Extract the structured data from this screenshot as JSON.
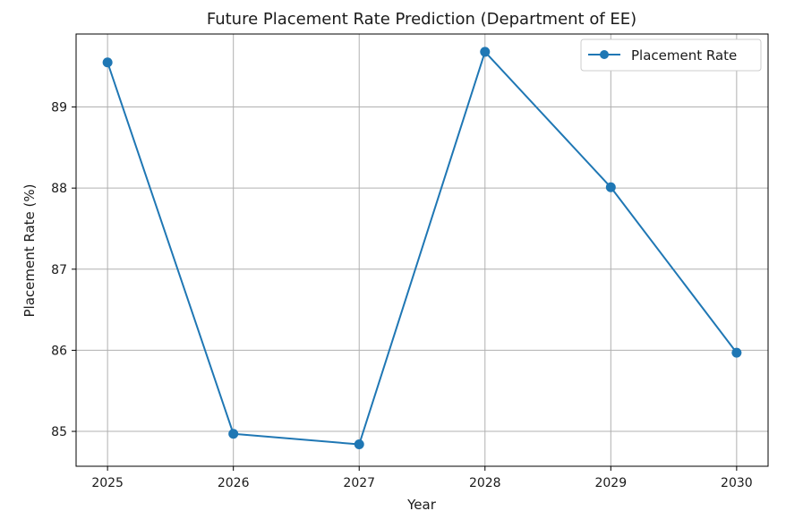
{
  "chart_data": {
    "type": "line",
    "title": "Future Placement Rate Prediction (Department of EE)",
    "xlabel": "Year",
    "ylabel": "Placement Rate (%)",
    "x": [
      2025,
      2026,
      2027,
      2028,
      2029,
      2030
    ],
    "x_tick_labels": [
      "2025",
      "2026",
      "2027",
      "2028",
      "2029",
      "2030"
    ],
    "y_ticks": [
      85,
      86,
      87,
      88,
      89
    ],
    "y_tick_labels": [
      "85",
      "86",
      "87",
      "88",
      "89"
    ],
    "xlim": [
      2024.75,
      2030.25
    ],
    "ylim": [
      84.57,
      89.9
    ],
    "grid": true,
    "legend": {
      "position": "top-right"
    },
    "series": [
      {
        "name": "Placement Rate",
        "values": [
          89.55,
          84.97,
          84.84,
          89.68,
          88.01,
          85.97
        ],
        "color": "#1f77b4",
        "marker": "circle"
      }
    ]
  }
}
